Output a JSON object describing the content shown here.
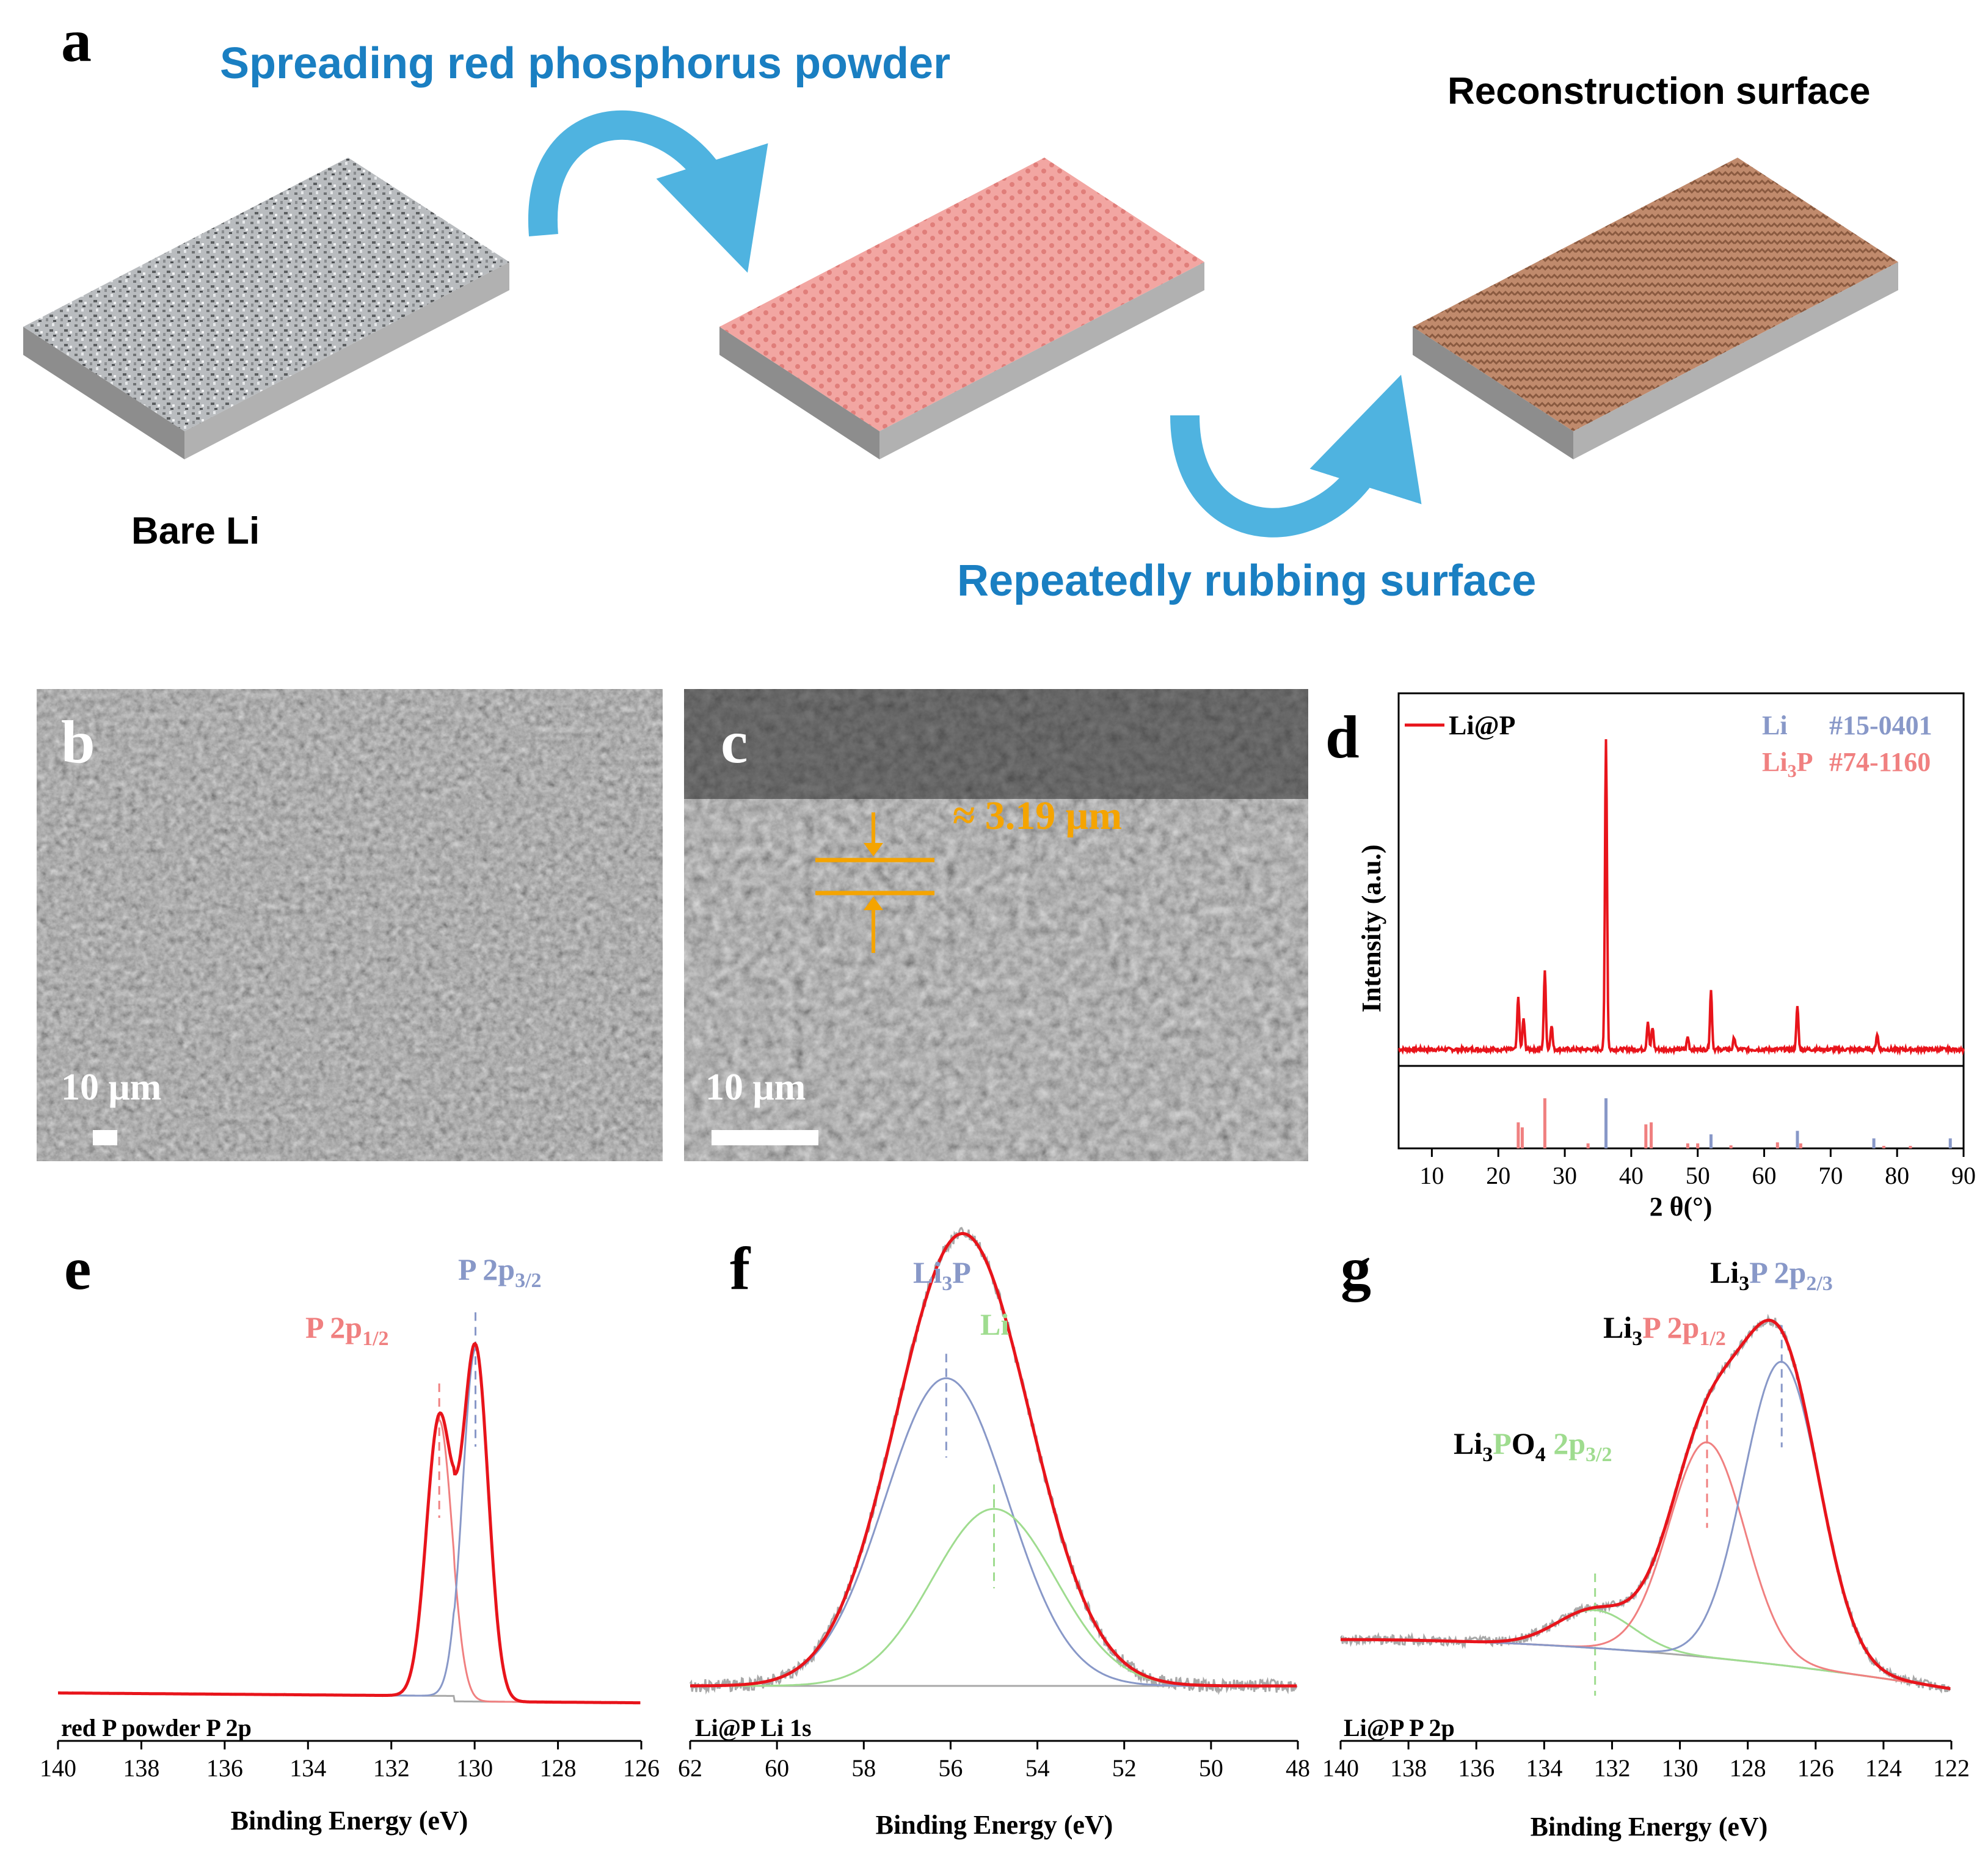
{
  "colors": {
    "flow_text": "#1a7fc2",
    "arrow": "#4fb3e0",
    "bare_li": "#b9bcbf",
    "red_p_surface": "#f09a96",
    "reconstructed_surface": "#b77a5c",
    "slab_side": "#a6a6a6",
    "annot": "#f5a400",
    "red": "#e8141b",
    "blue": "#8898c8",
    "pink": "#f08080",
    "green": "#9fdc8f",
    "gray": "#a8a8a8"
  },
  "schematic": {
    "panel_label": "a",
    "step1": "Spreading red phosphorus powder",
    "step2": "Repeatedly rubbing surface",
    "start_label": "Bare Li",
    "end_label": "Reconstruction  surface"
  },
  "sem": {
    "b": {
      "panel_label": "b",
      "scale_bar": "10 μm"
    },
    "c": {
      "panel_label": "c",
      "scale_bar": "10 μm",
      "thickness": "≈ 3.19 μm"
    }
  },
  "chart_data": [
    {
      "panel": "d",
      "type": "line",
      "xlabel": "2 θ(°)",
      "ylabel": "Intensity (a.u.)",
      "xlim": [
        5,
        90
      ],
      "xticks": [
        10,
        20,
        30,
        40,
        50,
        60,
        70,
        80,
        90
      ],
      "series": [
        {
          "name": "Li@P",
          "peaks": [
            [
              23,
              0.17
            ],
            [
              23.8,
              0.1
            ],
            [
              27,
              0.25
            ],
            [
              28,
              0.08
            ],
            [
              36.2,
              1.0
            ],
            [
              42.5,
              0.09
            ],
            [
              43.2,
              0.07
            ],
            [
              48.5,
              0.04
            ],
            [
              52,
              0.19
            ],
            [
              55.5,
              0.04
            ],
            [
              65,
              0.14
            ],
            [
              77,
              0.05
            ]
          ]
        }
      ],
      "references": [
        {
          "name": "Li",
          "card": "#15-0401",
          "sticks": [
            [
              36.2,
              1.0
            ],
            [
              52,
              0.28
            ],
            [
              65,
              0.35
            ],
            [
              76.5,
              0.2
            ],
            [
              88,
              0.2
            ]
          ]
        },
        {
          "name": "Li3P",
          "label_sub": "3",
          "card": "#74-1160",
          "sticks": [
            [
              23,
              0.52
            ],
            [
              23.6,
              0.42
            ],
            [
              27,
              1.0
            ],
            [
              33.5,
              0.1
            ],
            [
              42.2,
              0.48
            ],
            [
              43.0,
              0.52
            ],
            [
              48.5,
              0.1
            ],
            [
              50,
              0.1
            ],
            [
              55,
              0.06
            ],
            [
              62,
              0.12
            ],
            [
              65.5,
              0.1
            ],
            [
              78,
              0.05
            ],
            [
              82,
              0.05
            ]
          ]
        }
      ]
    },
    {
      "panel": "e",
      "type": "line",
      "corner_label": "red P powder P 2p",
      "xlabel": "Binding Energy (eV)",
      "xlim": [
        140,
        126
      ],
      "xticks": [
        140,
        138,
        136,
        134,
        132,
        130,
        128,
        126
      ],
      "peaks": [
        {
          "name": "P 2p1/2",
          "center": 130.85,
          "height": 0.61
        },
        {
          "name": "P 2p3/2",
          "center": 129.98,
          "height": 0.78
        }
      ]
    },
    {
      "panel": "f",
      "type": "line",
      "corner_label": "Li@P Li 1s",
      "xlabel": "Binding Energy (eV)",
      "xlim": [
        62,
        48
      ],
      "xticks": [
        62,
        60,
        58,
        56,
        54,
        52,
        50,
        48
      ],
      "peaks": [
        {
          "name": "Li3P",
          "center": 56.1,
          "height": 0.73
        },
        {
          "name": "Li",
          "center": 55.0,
          "height": 0.42
        }
      ]
    },
    {
      "panel": "g",
      "type": "line",
      "corner_label": "Li@P   P 2p",
      "xlabel": "Binding Energy (eV)",
      "xlim": [
        140,
        122
      ],
      "xticks": [
        140,
        138,
        136,
        134,
        132,
        130,
        128,
        126,
        124,
        122
      ],
      "peaks": [
        {
          "name": "Li3PO4 2p3/2",
          "center": 132.5,
          "height": 0.09
        },
        {
          "name": "Li3P 2p1/2",
          "center": 129.2,
          "height": 0.51
        },
        {
          "name": "Li3P 2p2/3",
          "center": 127.0,
          "height": 0.72
        }
      ]
    }
  ]
}
